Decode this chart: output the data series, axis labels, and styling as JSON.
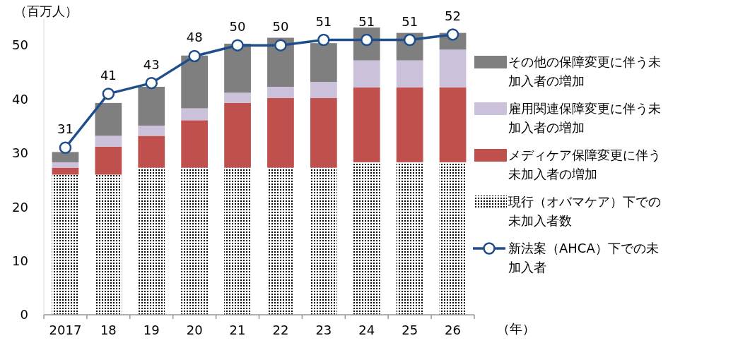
{
  "chart_data": {
    "type": "bar",
    "stacked": true,
    "ylabel": "（百万人）",
    "xlabel": "（年）",
    "categories": [
      "2017",
      "18",
      "19",
      "20",
      "21",
      "22",
      "23",
      "24",
      "25",
      "26"
    ],
    "ylim": [
      0,
      55
    ],
    "yticks": [
      0,
      10,
      20,
      30,
      40,
      50
    ],
    "grid": false,
    "legend": "right",
    "series": [
      {
        "name": "現行（オバマケア）下での未加入者数",
        "color": "#000000",
        "values": [
          26.0,
          26.0,
          27.3,
          27.3,
          27.3,
          27.3,
          27.3,
          28.3,
          28.3,
          28.3
        ]
      },
      {
        "name": "メディケア保障変更に伴う未加入者の増加",
        "color": "#c0504d",
        "values": [
          1.3,
          5.2,
          5.9,
          8.8,
          12.0,
          12.9,
          12.9,
          13.9,
          13.9,
          13.9
        ]
      },
      {
        "name": "雇用関連保障変更に伴う未加入者の増加",
        "color": "#ccc1da",
        "values": [
          1.0,
          2.0,
          1.9,
          2.2,
          1.9,
          2.1,
          3.0,
          5.0,
          5.0,
          7.0
        ]
      },
      {
        "name": "その他の保障変更に伴う未加入者の増加",
        "color": "#7f7f7f",
        "values": [
          1.9,
          6.1,
          7.2,
          9.8,
          9.1,
          9.1,
          7.2,
          6.1,
          5.1,
          3.1
        ]
      },
      {
        "name": "新法案（AHCA）下での未加入者",
        "type": "line",
        "color": "#1f4e8c",
        "marker": "circle",
        "data_labels": true,
        "values": [
          31,
          41,
          43,
          48,
          50,
          50,
          51,
          51,
          51,
          52
        ]
      }
    ]
  }
}
